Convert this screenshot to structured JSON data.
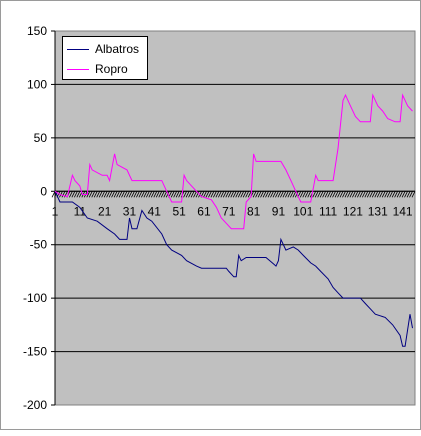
{
  "chart_data": {
    "type": "line",
    "title": "",
    "xlabel": "",
    "ylabel": "",
    "ylim": [
      -200,
      150
    ],
    "yticks": [
      -200,
      -150,
      -100,
      -50,
      0,
      50,
      100,
      150
    ],
    "xlim": [
      1,
      146
    ],
    "xticks": [
      1,
      11,
      21,
      31,
      41,
      51,
      61,
      71,
      81,
      91,
      101,
      111,
      121,
      131,
      141
    ],
    "grid": "horizontal",
    "plot_background": "#c0c0c0",
    "legend_position": "top-left",
    "series": [
      {
        "name": "Albatros",
        "color": "#000080",
        "points": [
          [
            1,
            0
          ],
          [
            3,
            -10
          ],
          [
            8,
            -10
          ],
          [
            11,
            -15
          ],
          [
            14,
            -25
          ],
          [
            18,
            -28
          ],
          [
            22,
            -35
          ],
          [
            25,
            -40
          ],
          [
            27,
            -45
          ],
          [
            30,
            -45
          ],
          [
            31,
            -25
          ],
          [
            32,
            -35
          ],
          [
            34,
            -35
          ],
          [
            36,
            -18
          ],
          [
            38,
            -25
          ],
          [
            40,
            -28
          ],
          [
            44,
            -40
          ],
          [
            46,
            -50
          ],
          [
            48,
            -55
          ],
          [
            52,
            -60
          ],
          [
            54,
            -65
          ],
          [
            58,
            -70
          ],
          [
            60,
            -72
          ],
          [
            64,
            -72
          ],
          [
            70,
            -72
          ],
          [
            71,
            -75
          ],
          [
            73,
            -80
          ],
          [
            74,
            -80
          ],
          [
            75,
            -60
          ],
          [
            76,
            -65
          ],
          [
            78,
            -62
          ],
          [
            86,
            -62
          ],
          [
            89,
            -68
          ],
          [
            90,
            -70
          ],
          [
            91,
            -65
          ],
          [
            92,
            -45
          ],
          [
            94,
            -55
          ],
          [
            97,
            -52
          ],
          [
            99,
            -55
          ],
          [
            101,
            -60
          ],
          [
            104,
            -67
          ],
          [
            106,
            -70
          ],
          [
            108,
            -75
          ],
          [
            111,
            -82
          ],
          [
            113,
            -90
          ],
          [
            115,
            -95
          ],
          [
            117,
            -100
          ],
          [
            124,
            -100
          ],
          [
            126,
            -105
          ],
          [
            128,
            -110
          ],
          [
            130,
            -115
          ],
          [
            134,
            -118
          ],
          [
            137,
            -125
          ],
          [
            140,
            -135
          ],
          [
            141,
            -145
          ],
          [
            142,
            -145
          ],
          [
            144,
            -115
          ],
          [
            145,
            -128
          ]
        ]
      },
      {
        "name": "Ropro",
        "color": "#ff00ff",
        "points": [
          [
            1,
            0
          ],
          [
            3,
            -3
          ],
          [
            6,
            -5
          ],
          [
            8,
            15
          ],
          [
            9,
            10
          ],
          [
            11,
            5
          ],
          [
            12,
            -3
          ],
          [
            14,
            -3
          ],
          [
            15,
            25
          ],
          [
            16,
            20
          ],
          [
            20,
            15
          ],
          [
            22,
            15
          ],
          [
            23,
            10
          ],
          [
            25,
            35
          ],
          [
            26,
            25
          ],
          [
            30,
            20
          ],
          [
            32,
            10
          ],
          [
            44,
            10
          ],
          [
            46,
            0
          ],
          [
            48,
            -10
          ],
          [
            52,
            -10
          ],
          [
            53,
            15
          ],
          [
            54,
            10
          ],
          [
            58,
            0
          ],
          [
            60,
            -5
          ],
          [
            64,
            -8
          ],
          [
            66,
            -15
          ],
          [
            68,
            -25
          ],
          [
            70,
            -30
          ],
          [
            72,
            -35
          ],
          [
            77,
            -35
          ],
          [
            78,
            -10
          ],
          [
            80,
            -5
          ],
          [
            81,
            35
          ],
          [
            82,
            28
          ],
          [
            92,
            28
          ],
          [
            94,
            20
          ],
          [
            96,
            10
          ],
          [
            98,
            0
          ],
          [
            100,
            -10
          ],
          [
            104,
            -10
          ],
          [
            106,
            15
          ],
          [
            107,
            10
          ],
          [
            113,
            10
          ],
          [
            115,
            40
          ],
          [
            117,
            85
          ],
          [
            118,
            90
          ],
          [
            120,
            80
          ],
          [
            122,
            70
          ],
          [
            124,
            65
          ],
          [
            128,
            65
          ],
          [
            129,
            90
          ],
          [
            131,
            80
          ],
          [
            133,
            75
          ],
          [
            135,
            68
          ],
          [
            138,
            65
          ],
          [
            140,
            65
          ],
          [
            141,
            90
          ],
          [
            143,
            80
          ],
          [
            145,
            75
          ]
        ]
      }
    ]
  }
}
